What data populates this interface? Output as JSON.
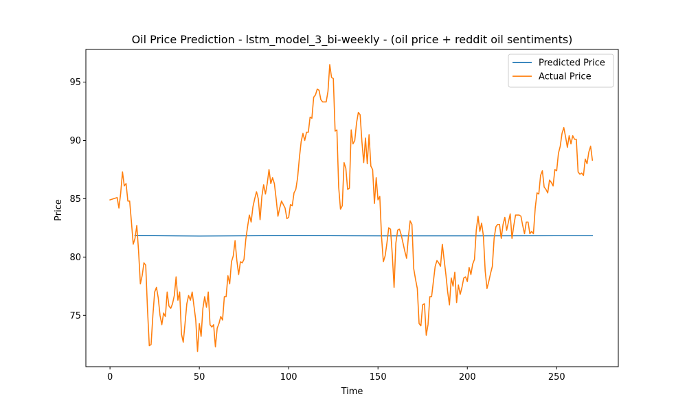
{
  "chart_data": {
    "type": "line",
    "title": "Oil Price Prediction - lstm_model_3_bi-weekly - (oil price + reddit oil sentiments)",
    "xlabel": "Time",
    "ylabel": "Price",
    "xlim": [
      -13.5,
      284.5
    ],
    "ylim": [
      70.6,
      97.8
    ],
    "xticks": [
      0,
      50,
      100,
      150,
      200,
      250
    ],
    "yticks": [
      75,
      80,
      85,
      90,
      95
    ],
    "legend": "top-right",
    "grid": false,
    "series": [
      {
        "name": "Predicted Price",
        "color": "#1f77b4",
        "points": [
          [
            14,
            81.85
          ],
          [
            50,
            81.8
          ],
          [
            100,
            81.85
          ],
          [
            150,
            81.82
          ],
          [
            200,
            81.82
          ],
          [
            250,
            81.83
          ],
          [
            270,
            81.83
          ]
        ]
      },
      {
        "name": "Actual Price",
        "color": "#ff7f0e",
        "points": [
          [
            0,
            84.9
          ],
          [
            2,
            85.0
          ],
          [
            4,
            85.1
          ],
          [
            5,
            84.2
          ],
          [
            6,
            85.5
          ],
          [
            7,
            87.3
          ],
          [
            8,
            86.1
          ],
          [
            9,
            86.3
          ],
          [
            10,
            84.8
          ],
          [
            11,
            84.8
          ],
          [
            12,
            83.0
          ],
          [
            13,
            81.1
          ],
          [
            14,
            81.6
          ],
          [
            15,
            82.7
          ],
          [
            16,
            80.5
          ],
          [
            17,
            77.7
          ],
          [
            18,
            78.4
          ],
          [
            19,
            79.5
          ],
          [
            20,
            79.3
          ],
          [
            21,
            75.5
          ],
          [
            22,
            72.4
          ],
          [
            23,
            72.5
          ],
          [
            24,
            75.0
          ],
          [
            25,
            77.0
          ],
          [
            26,
            77.4
          ],
          [
            27,
            76.5
          ],
          [
            28,
            75.0
          ],
          [
            29,
            74.2
          ],
          [
            30,
            75.2
          ],
          [
            31,
            74.9
          ],
          [
            32,
            77.0
          ],
          [
            33,
            75.8
          ],
          [
            34,
            75.6
          ],
          [
            35,
            76.0
          ],
          [
            36,
            76.7
          ],
          [
            37,
            78.3
          ],
          [
            38,
            76.3
          ],
          [
            39,
            77.0
          ],
          [
            40,
            73.4
          ],
          [
            41,
            72.7
          ],
          [
            42,
            74.3
          ],
          [
            43,
            76.0
          ],
          [
            44,
            76.7
          ],
          [
            45,
            76.3
          ],
          [
            46,
            77.0
          ],
          [
            47,
            75.8
          ],
          [
            48,
            74.6
          ],
          [
            49,
            71.9
          ],
          [
            50,
            74.3
          ],
          [
            51,
            73.2
          ],
          [
            52,
            75.6
          ],
          [
            53,
            76.6
          ],
          [
            54,
            75.7
          ],
          [
            55,
            77.0
          ],
          [
            56,
            74.2
          ],
          [
            57,
            74.0
          ],
          [
            58,
            74.2
          ],
          [
            59,
            72.3
          ],
          [
            60,
            73.9
          ],
          [
            61,
            74.3
          ],
          [
            62,
            74.9
          ],
          [
            63,
            74.6
          ],
          [
            64,
            76.6
          ],
          [
            65,
            76.6
          ],
          [
            66,
            78.4
          ],
          [
            67,
            77.7
          ],
          [
            68,
            79.6
          ],
          [
            69,
            80.1
          ],
          [
            70,
            81.4
          ],
          [
            71,
            79.7
          ],
          [
            72,
            78.5
          ],
          [
            73,
            79.6
          ],
          [
            74,
            79.5
          ],
          [
            75,
            79.8
          ],
          [
            76,
            81.5
          ],
          [
            77,
            82.6
          ],
          [
            78,
            83.6
          ],
          [
            79,
            83.0
          ],
          [
            80,
            84.3
          ],
          [
            81,
            85.0
          ],
          [
            82,
            85.6
          ],
          [
            83,
            85.0
          ],
          [
            84,
            83.2
          ],
          [
            85,
            85.2
          ],
          [
            86,
            86.2
          ],
          [
            87,
            85.4
          ],
          [
            88,
            86.3
          ],
          [
            89,
            87.5
          ],
          [
            90,
            86.3
          ],
          [
            91,
            86.8
          ],
          [
            92,
            86.3
          ],
          [
            93,
            85.0
          ],
          [
            94,
            83.5
          ],
          [
            95,
            84.2
          ],
          [
            96,
            84.8
          ],
          [
            97,
            84.5
          ],
          [
            98,
            84.2
          ],
          [
            99,
            83.3
          ],
          [
            100,
            83.4
          ],
          [
            101,
            84.5
          ],
          [
            102,
            84.4
          ],
          [
            103,
            85.5
          ],
          [
            104,
            85.8
          ],
          [
            105,
            86.8
          ],
          [
            106,
            88.5
          ],
          [
            107,
            89.9
          ],
          [
            108,
            90.6
          ],
          [
            109,
            90.0
          ],
          [
            110,
            90.7
          ],
          [
            111,
            90.7
          ],
          [
            112,
            92.0
          ],
          [
            113,
            91.9
          ],
          [
            114,
            93.7
          ],
          [
            115,
            93.9
          ],
          [
            116,
            94.4
          ],
          [
            117,
            94.3
          ],
          [
            118,
            93.5
          ],
          [
            119,
            93.3
          ],
          [
            120,
            93.3
          ],
          [
            121,
            93.3
          ],
          [
            122,
            94.2
          ],
          [
            123,
            96.5
          ],
          [
            124,
            95.4
          ],
          [
            125,
            95.3
          ],
          [
            126,
            90.8
          ],
          [
            127,
            90.9
          ],
          [
            128,
            86.0
          ],
          [
            129,
            84.1
          ],
          [
            130,
            84.4
          ],
          [
            131,
            88.1
          ],
          [
            132,
            87.6
          ],
          [
            133,
            85.8
          ],
          [
            134,
            85.9
          ],
          [
            135,
            90.9
          ],
          [
            136,
            89.7
          ],
          [
            137,
            90.0
          ],
          [
            138,
            91.5
          ],
          [
            139,
            92.4
          ],
          [
            140,
            92.2
          ],
          [
            141,
            89.9
          ],
          [
            142,
            88.1
          ],
          [
            143,
            90.2
          ],
          [
            144,
            88.0
          ],
          [
            145,
            90.5
          ],
          [
            146,
            87.8
          ],
          [
            147,
            87.5
          ],
          [
            148,
            84.6
          ],
          [
            149,
            86.8
          ],
          [
            150,
            84.9
          ],
          [
            151,
            85.2
          ],
          [
            152,
            81.7
          ],
          [
            153,
            79.6
          ],
          [
            154,
            80.1
          ],
          [
            155,
            81.2
          ],
          [
            156,
            82.5
          ],
          [
            157,
            82.4
          ],
          [
            158,
            80.2
          ],
          [
            159,
            77.4
          ],
          [
            160,
            81.2
          ],
          [
            161,
            82.3
          ],
          [
            162,
            82.4
          ],
          [
            163,
            81.9
          ],
          [
            164,
            81.2
          ],
          [
            165,
            80.5
          ],
          [
            166,
            79.9
          ],
          [
            167,
            81.7
          ],
          [
            168,
            83.1
          ],
          [
            169,
            82.8
          ],
          [
            170,
            79.0
          ],
          [
            171,
            78.1
          ],
          [
            172,
            77.3
          ],
          [
            173,
            74.3
          ],
          [
            174,
            74.1
          ],
          [
            175,
            75.9
          ],
          [
            176,
            76.0
          ],
          [
            177,
            73.3
          ],
          [
            178,
            74.2
          ],
          [
            179,
            76.6
          ],
          [
            180,
            76.6
          ],
          [
            181,
            77.9
          ],
          [
            182,
            79.2
          ],
          [
            183,
            79.7
          ],
          [
            184,
            79.5
          ],
          [
            185,
            79.2
          ],
          [
            186,
            81.1
          ],
          [
            187,
            79.8
          ],
          [
            188,
            78.5
          ],
          [
            189,
            77.0
          ],
          [
            190,
            75.9
          ],
          [
            191,
            78.2
          ],
          [
            192,
            77.5
          ],
          [
            193,
            78.7
          ],
          [
            194,
            76.1
          ],
          [
            195,
            77.6
          ],
          [
            196,
            76.8
          ],
          [
            197,
            77.4
          ],
          [
            198,
            78.2
          ],
          [
            199,
            78.3
          ],
          [
            200,
            77.9
          ],
          [
            201,
            79.1
          ],
          [
            202,
            78.5
          ],
          [
            203,
            79.4
          ],
          [
            204,
            79.8
          ],
          [
            205,
            82.3
          ],
          [
            206,
            83.5
          ],
          [
            207,
            82.2
          ],
          [
            208,
            82.9
          ],
          [
            209,
            81.8
          ],
          [
            210,
            78.8
          ],
          [
            211,
            77.3
          ],
          [
            212,
            77.9
          ],
          [
            213,
            78.6
          ],
          [
            214,
            79.2
          ],
          [
            215,
            81.6
          ],
          [
            216,
            82.6
          ],
          [
            217,
            82.8
          ],
          [
            218,
            82.8
          ],
          [
            219,
            81.6
          ],
          [
            220,
            82.8
          ],
          [
            221,
            83.4
          ],
          [
            222,
            82.3
          ],
          [
            223,
            83.0
          ],
          [
            224,
            83.7
          ],
          [
            225,
            81.6
          ],
          [
            226,
            82.7
          ],
          [
            227,
            83.6
          ],
          [
            228,
            83.6
          ],
          [
            229,
            83.6
          ],
          [
            230,
            83.5
          ],
          [
            231,
            82.7
          ],
          [
            232,
            82.0
          ],
          [
            233,
            83.0
          ],
          [
            234,
            83.0
          ],
          [
            235,
            82.0
          ],
          [
            236,
            82.2
          ],
          [
            237,
            82.0
          ],
          [
            238,
            84.2
          ],
          [
            239,
            85.5
          ],
          [
            240,
            85.4
          ],
          [
            241,
            87.0
          ],
          [
            242,
            87.4
          ],
          [
            243,
            86.0
          ],
          [
            244,
            85.8
          ],
          [
            245,
            85.5
          ],
          [
            246,
            86.6
          ],
          [
            247,
            86.4
          ],
          [
            248,
            86.1
          ],
          [
            249,
            87.5
          ],
          [
            250,
            87.4
          ],
          [
            251,
            88.9
          ],
          [
            252,
            89.5
          ],
          [
            253,
            90.6
          ],
          [
            254,
            91.1
          ],
          [
            255,
            90.3
          ],
          [
            256,
            89.4
          ],
          [
            257,
            90.4
          ],
          [
            258,
            89.7
          ],
          [
            259,
            90.4
          ],
          [
            260,
            90.1
          ],
          [
            261,
            90.1
          ],
          [
            262,
            87.3
          ],
          [
            263,
            87.1
          ],
          [
            264,
            87.2
          ],
          [
            265,
            87.0
          ],
          [
            266,
            88.4
          ],
          [
            267,
            88.0
          ],
          [
            268,
            89.0
          ],
          [
            269,
            89.5
          ],
          [
            270,
            88.3
          ]
        ]
      }
    ]
  }
}
